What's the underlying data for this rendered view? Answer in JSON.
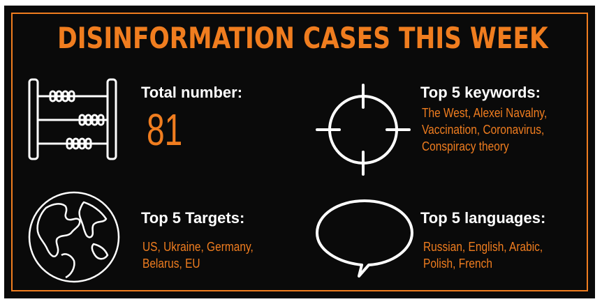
{
  "title": "DISINFORMATION CASES THIS WEEK",
  "colors": {
    "accent": "#f07d1f",
    "background": "#0a0a0a",
    "text": "#ffffff"
  },
  "total": {
    "heading": "Total number:",
    "value": "81",
    "icon": "abacus-icon"
  },
  "keywords": {
    "heading": "Top 5 keywords:",
    "lines": [
      "The West, Alexei Navalny,",
      "Vaccination, Coronavirus,",
      "Conspiracy theory"
    ],
    "icon": "crosshair-icon"
  },
  "targets": {
    "heading": "Top 5 Targets:",
    "lines": [
      "US, Ukraine, Germany,",
      "Belarus, EU"
    ],
    "icon": "globe-icon"
  },
  "languages": {
    "heading": "Top 5 languages:",
    "lines": [
      "Russian, English, Arabic,",
      "Polish, French"
    ],
    "icon": "speech-bubble-icon"
  }
}
